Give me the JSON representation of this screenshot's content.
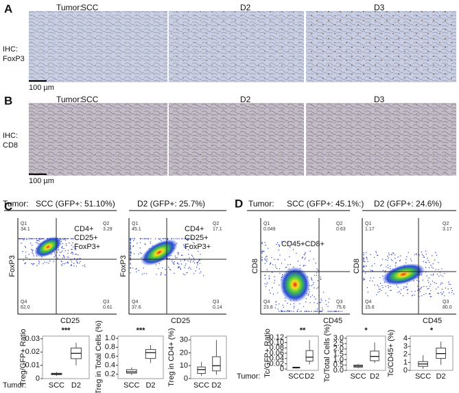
{
  "panel_a": {
    "label": "A",
    "tumor_label": "Tumor:",
    "columns": [
      "SCC",
      "D2",
      "D3"
    ],
    "stain": [
      "IHC:",
      "FoxP3"
    ],
    "scale_bar": "100 µm"
  },
  "panel_b": {
    "label": "B",
    "tumor_label": "Tumor:",
    "columns": [
      "SCC",
      "D2",
      "D3"
    ],
    "stain": [
      "IHC:",
      "CD8"
    ],
    "scale_bar": "100 µm"
  },
  "panel_c": {
    "label": "C",
    "tumor_label": "Tumor:",
    "flow": [
      {
        "title": "SCC (GFP+: 51.10%)",
        "x_label": "CD25",
        "y_label": "FoxP3",
        "quadrants": [
          [
            "Q1",
            "34.1"
          ],
          [
            "Q2",
            "3.29"
          ],
          [
            "Q4",
            "62.0"
          ],
          [
            "Q3",
            "0.61"
          ]
        ],
        "annotation": [
          "CD4+",
          "CD25+",
          "FoxP3+"
        ]
      },
      {
        "title": "D2 (GFP+: 25.7%)",
        "x_label": "CD25",
        "y_label": "FoxP3",
        "quadrants": [
          [
            "Q1",
            "45.1"
          ],
          [
            "Q2",
            "17.1"
          ],
          [
            "Q4",
            "37.6"
          ],
          [
            "Q3",
            "0.14"
          ]
        ],
        "annotation": [
          "CD4+",
          "CD25+",
          "FoxP3+"
        ]
      }
    ],
    "box_tumor_label": "Tumor:",
    "boxplots": [
      {
        "y_label": "Treg/GFP+ Ratio",
        "significance": "***",
        "categories": [
          "SCC",
          "D2"
        ],
        "ylim": [
          0,
          0.032
        ],
        "yticks": [
          0,
          0.01,
          0.02,
          0.03
        ],
        "boxes": [
          [
            0.002,
            0.003,
            0.0035,
            0.004,
            0.005
          ],
          [
            0.01,
            0.015,
            0.019,
            0.023,
            0.027
          ]
        ]
      },
      {
        "y_label": "Treg in Total Cells (%)",
        "significance": "***",
        "categories": [
          "SCC",
          "D2"
        ],
        "ylim": [
          0.1,
          1.05
        ],
        "yticks": [
          0.2,
          0.4,
          0.6,
          0.8,
          {
            "value": 1,
            "label": "1.0"
          }
        ],
        "boxes": [
          [
            0.18,
            0.22,
            0.25,
            0.3,
            0.35
          ],
          [
            0.45,
            0.55,
            0.68,
            0.75,
            0.85
          ]
        ]
      },
      {
        "y_label": "Treg in CD4+ (%)",
        "categories": [
          "SCC",
          "D2"
        ],
        "ylim": [
          0,
          33
        ],
        "yticks": [
          0,
          10,
          20,
          30
        ],
        "boxes": [
          [
            2,
            4,
            7,
            9,
            13
          ],
          [
            3,
            6,
            10,
            17,
            30
          ]
        ]
      }
    ]
  },
  "panel_d": {
    "label": "D",
    "tumor_label": "Tumor:",
    "flow": [
      {
        "title": "SCC (GFP+: 45.1%:)",
        "x_label": "CD45",
        "y_label": "CD8",
        "quadrants": [
          [
            "Q1",
            "0.049"
          ],
          [
            "Q2",
            "0.63"
          ],
          [
            "Q4",
            "23.8"
          ],
          [
            "Q3",
            "75.6"
          ]
        ],
        "annotation": [
          "CD45+CD8+"
        ]
      },
      {
        "title": "D2 (GFP+: 24.6%)",
        "x_label": "CD45",
        "y_label": "CD8",
        "quadrants": [
          [
            "Q1",
            "1.17"
          ],
          [
            "Q2",
            "3.17"
          ],
          [
            "Q4",
            "15.6"
          ],
          [
            "Q3",
            "80.0"
          ]
        ]
      }
    ],
    "box_tumor_label": "Tumor:",
    "boxplots": [
      {
        "y_label": "Tc/GFP+ Ratio",
        "significance": "**",
        "categories": [
          "SCC",
          "D2"
        ],
        "ylim": [
          -0.005,
          0.125
        ],
        "yticks": [
          0,
          0.02,
          0.04,
          0.06,
          0.08,
          {
            "value": 0.1,
            "label": "0.10"
          },
          0.12
        ],
        "boxes": [
          [
            0.002,
            0.004,
            0.006,
            0.007,
            0.008
          ],
          [
            0.018,
            0.03,
            0.045,
            0.07,
            0.11
          ]
        ]
      },
      {
        "y_label": "Tc/Total Cells (%)",
        "significance": "*",
        "categories": [
          "SCC",
          "D2"
        ],
        "ylim": [
          0,
          3.2
        ],
        "yticks": [
          {
            "value": 0,
            "label": "0.0"
          },
          0.5,
          {
            "value": 1,
            "label": "1.0"
          },
          1.5,
          {
            "value": 2,
            "label": "2.0"
          },
          2.5,
          {
            "value": 3,
            "label": "3.0"
          }
        ],
        "boxes": [
          [
            0.2,
            0.3,
            0.4,
            0.5,
            0.6
          ],
          [
            0.7,
            0.9,
            1.3,
            1.8,
            2.6
          ]
        ]
      },
      {
        "y_label": "Tc/CD45+ (%)",
        "significance": "*",
        "categories": [
          "SCC",
          "D2"
        ],
        "ylim": [
          0,
          4.3
        ],
        "yticks": [
          0,
          1,
          2,
          3,
          4
        ],
        "boxes": [
          [
            0.2,
            0.5,
            0.8,
            1.1,
            1.9
          ],
          [
            0.7,
            1.5,
            2.1,
            2.8,
            3.6
          ]
        ]
      }
    ]
  }
}
